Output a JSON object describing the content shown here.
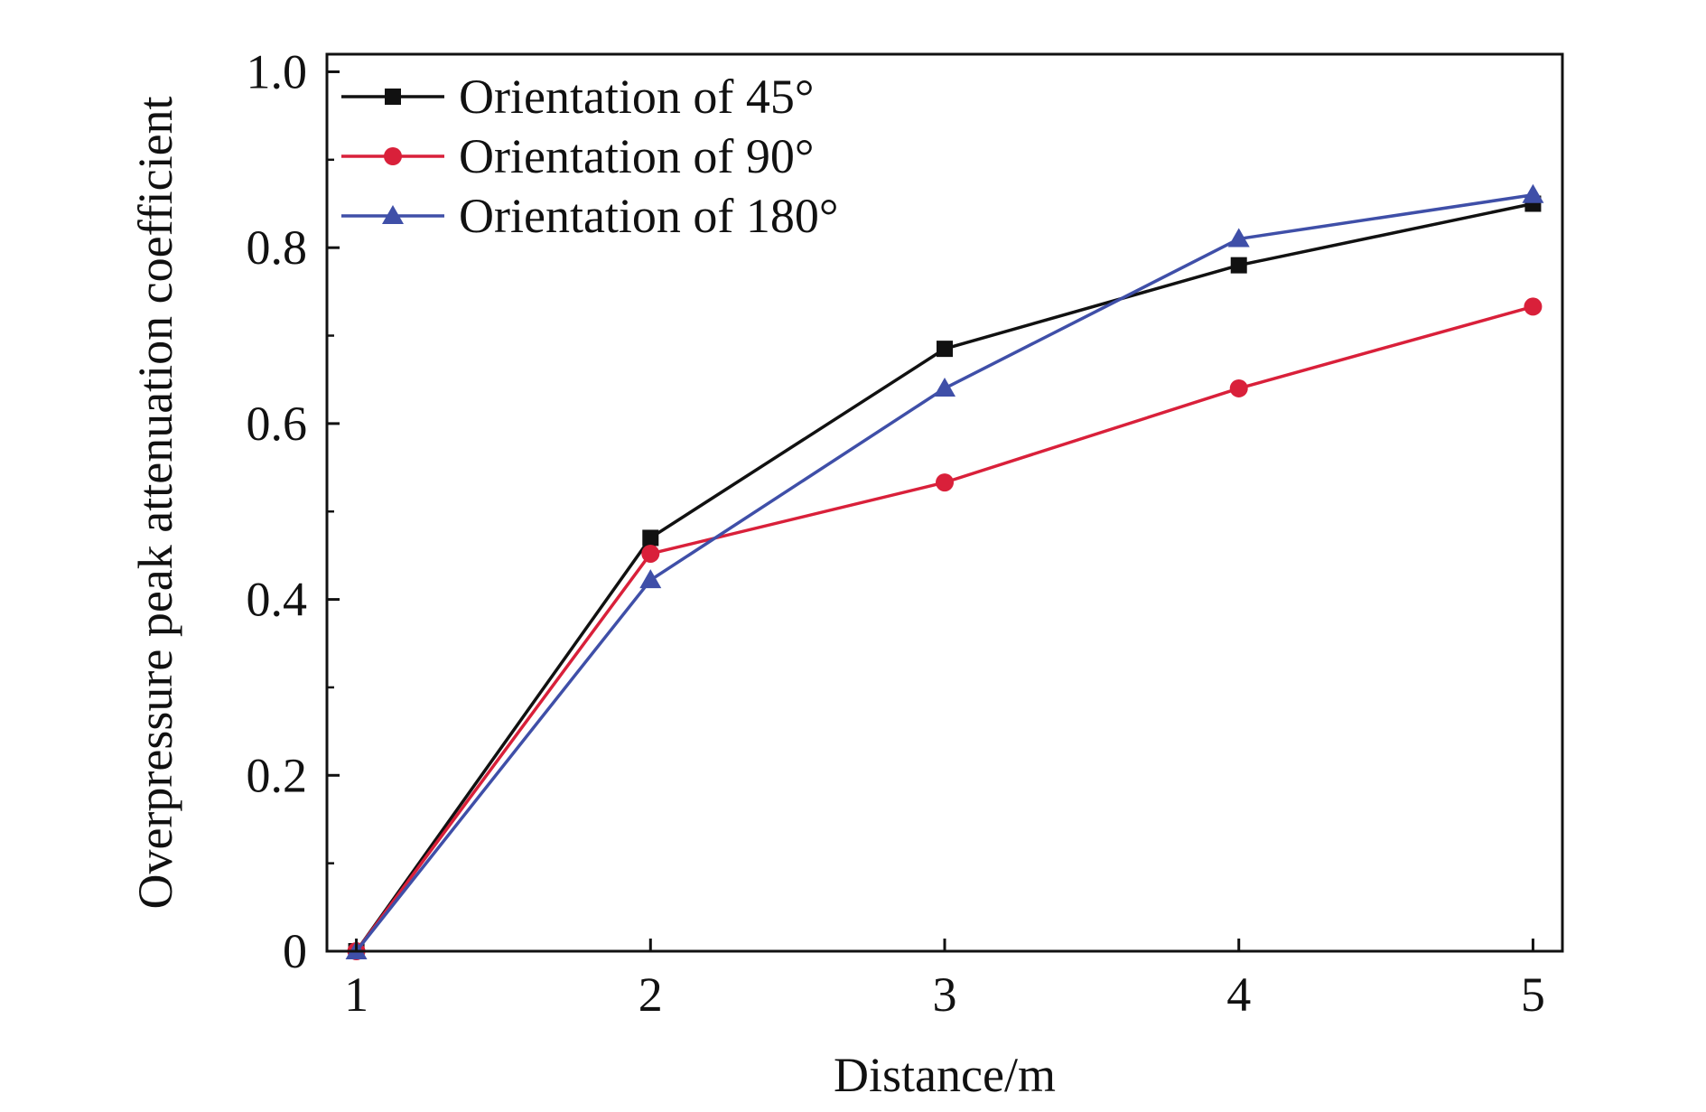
{
  "chart_data": {
    "type": "line",
    "title": "",
    "xlabel": "Distance/m",
    "ylabel": "Overpressure peak attenuation coefficient",
    "xlim": [
      0.9,
      5.1
    ],
    "ylim": [
      0,
      1.02
    ],
    "x_ticks": [
      "1",
      "2",
      "3",
      "4",
      "5"
    ],
    "y_ticks": [
      "0",
      "0.2",
      "0.4",
      "0.6",
      "0.8",
      "1.0"
    ],
    "x": [
      1,
      2,
      3,
      4,
      5
    ],
    "legend_position": "top-left",
    "grid": false,
    "series": [
      {
        "name": "Orientation of 45°",
        "color": "#111111",
        "marker": "square",
        "values": [
          0,
          0.47,
          0.685,
          0.78,
          0.85
        ]
      },
      {
        "name": "Orientation of 90°",
        "color": "#d9203a",
        "marker": "circle",
        "values": [
          0,
          0.452,
          0.533,
          0.64,
          0.733
        ]
      },
      {
        "name": "Orientation of 180°",
        "color": "#3f4fa8",
        "marker": "triangle",
        "values": [
          0,
          0.422,
          0.64,
          0.81,
          0.86
        ]
      }
    ]
  }
}
